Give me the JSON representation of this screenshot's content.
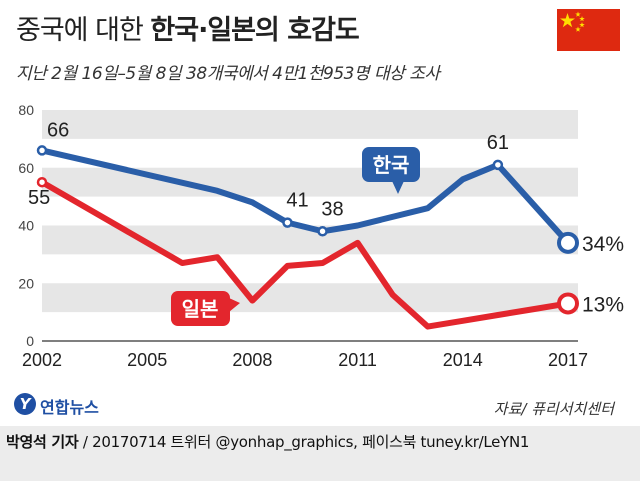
{
  "header": {
    "title_regular": "중국에 대한",
    "title_bold": "한국·일본의 호감도",
    "subtitle": "지난 2월 16일–5월 8일 38개국에서 4만1천953명 대상 조사"
  },
  "chart_data": {
    "type": "line",
    "title": "중국에 대한 한국·일본의 호감도",
    "ylim": [
      0,
      80
    ],
    "yticks": [
      "0",
      "20",
      "40",
      "60",
      "80"
    ],
    "xlim": [
      2002,
      2017
    ],
    "xticks": [
      "2002",
      "2005",
      "2008",
      "2011",
      "2014",
      "2017"
    ],
    "series": [
      {
        "name": "한국",
        "color": "#2a5ea8",
        "x": [
          2002,
          2007,
          2008,
          2009,
          2010,
          2011,
          2013,
          2014,
          2015,
          2017
        ],
        "values": [
          66,
          52,
          48,
          41,
          38,
          40,
          46,
          56,
          61,
          34
        ],
        "labels": [
          {
            "index": 0,
            "text": "66"
          },
          {
            "index": 3,
            "text": "41"
          },
          {
            "index": 4,
            "text": "38"
          },
          {
            "index": 8,
            "text": "61"
          },
          {
            "index": 9,
            "text": "34%"
          }
        ]
      },
      {
        "name": "일본",
        "color": "#e3262d",
        "x": [
          2002,
          2006,
          2007,
          2008,
          2009,
          2010,
          2011,
          2012,
          2013,
          2014,
          2015,
          2016,
          2017
        ],
        "values": [
          55,
          27,
          29,
          14,
          26,
          27,
          34,
          16,
          5,
          7,
          9,
          11,
          13
        ],
        "labels": [
          {
            "index": 0,
            "text": "55"
          },
          {
            "index": 12,
            "text": "13%"
          }
        ]
      }
    ]
  },
  "legend": {
    "korea": "한국",
    "japan": "일본"
  },
  "branding": {
    "logo_mark": "Y",
    "logo_text": "연합뉴스",
    "source": "자료/ 퓨리서치센터"
  },
  "footer": {
    "byline": "박영석 기자",
    "rest": " / 20170714   트위터 @yonhap_graphics, 페이스북 tuney.kr/LeYN1"
  }
}
